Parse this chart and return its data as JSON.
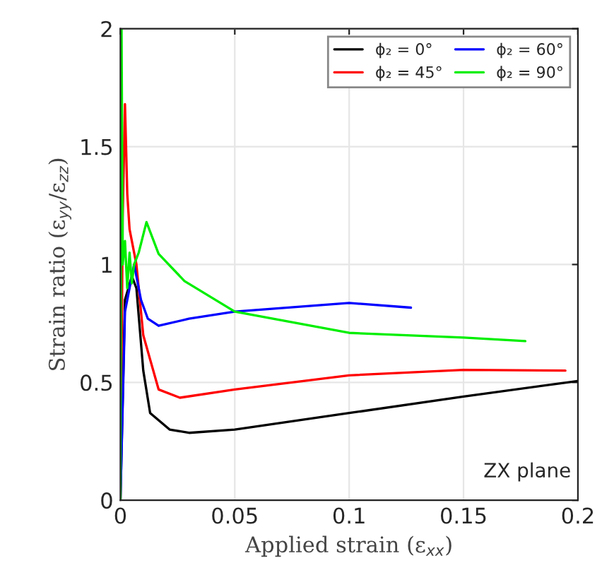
{
  "chart_data": {
    "type": "line",
    "xlabel": "Applied strain (ε$_{xx}$)",
    "ylabel": "Strain ratio (ε$_{yy}$/ε$_{zz}$)",
    "xlim": [
      0,
      0.2
    ],
    "ylim": [
      0,
      2
    ],
    "xticks": [
      0,
      0.05,
      0.1,
      0.15,
      0.2
    ],
    "yticks": [
      0,
      0.5,
      1,
      1.5,
      2
    ],
    "grid": true,
    "legend": "top right",
    "marker": "none",
    "line_style": "solid",
    "annotations": [
      {
        "text": "ZX plane"
      }
    ],
    "series": [
      {
        "name": "ϕ₂ = 0°",
        "color": "#000000",
        "x": [
          0,
          0.002,
          0.005,
          0.007,
          0.01,
          0.013,
          0.0215,
          0.03,
          0.05,
          0.1,
          0.15,
          0.2
        ],
        "values": [
          0,
          0.85,
          0.95,
          0.9,
          0.55,
          0.37,
          0.3,
          0.286,
          0.3,
          0.37,
          0.44,
          0.506
        ]
      },
      {
        "name": "ϕ₂ = 45°",
        "color": "#ff0000",
        "x": [
          0,
          0.001,
          0.002,
          0.003,
          0.004,
          0.005,
          0.007,
          0.01,
          0.0167,
          0.026,
          0.05,
          0.1,
          0.15,
          0.1945
        ],
        "values": [
          0,
          1.2,
          1.68,
          1.3,
          1.15,
          1.1,
          1.0,
          0.7,
          0.47,
          0.435,
          0.47,
          0.53,
          0.553,
          0.55
        ]
      },
      {
        "name": "ϕ₂ = 60°",
        "color": "#0000ff",
        "x": [
          0,
          0.002,
          0.006,
          0.009,
          0.012,
          0.0167,
          0.03,
          0.05,
          0.1,
          0.127
        ],
        "values": [
          0,
          0.8,
          1.0,
          0.85,
          0.77,
          0.74,
          0.77,
          0.8,
          0.837,
          0.817
        ]
      },
      {
        "name": "ϕ₂ = 90°",
        "color": "#00ee00",
        "x": [
          0,
          0.0005,
          0.001,
          0.002,
          0.003,
          0.004,
          0.005,
          0.006,
          0.008,
          0.0114,
          0.0167,
          0.028,
          0.05,
          0.1,
          0.15,
          0.177
        ],
        "values": [
          0,
          2.0,
          1.0,
          1.1,
          0.9,
          1.05,
          0.92,
          1.0,
          1.05,
          1.18,
          1.045,
          0.93,
          0.8,
          0.71,
          0.69,
          0.675
        ]
      }
    ]
  }
}
